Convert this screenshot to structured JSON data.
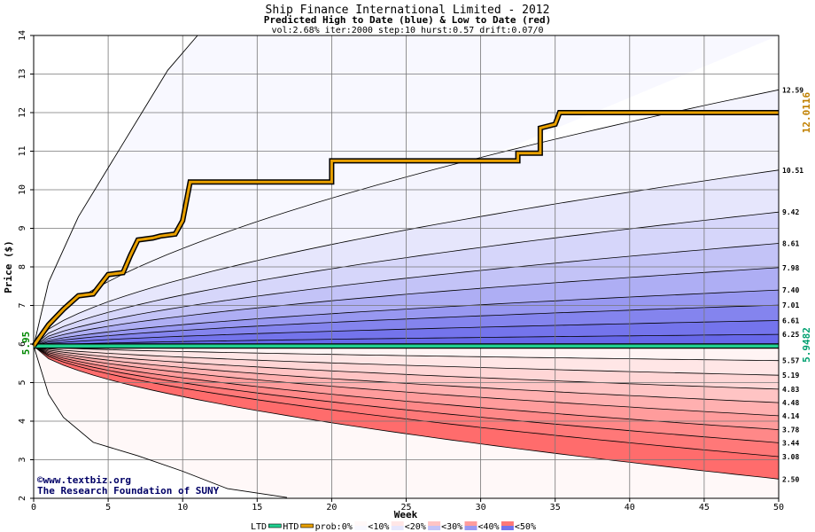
{
  "chart_data": {
    "type": "area",
    "title": "Ship Finance International Limited - 2012",
    "subtitle": "Predicted High to Date (blue) &  Low to Date (red)",
    "params": "vol:2.68% iter:2000 step:10 hurst:0.57 drift:0.07/0",
    "xlabel": "Week",
    "ylabel": "Price ($)",
    "xlim": [
      0,
      50
    ],
    "ylim": [
      2,
      14
    ],
    "x_ticks": [
      "0",
      "5",
      "10",
      "15",
      "20",
      "25",
      "30",
      "35",
      "40",
      "45",
      "50"
    ],
    "y_ticks": [
      "2",
      "3",
      "4",
      "5",
      "6",
      "7",
      "8",
      "9",
      "10",
      "11",
      "12",
      "13",
      "14"
    ],
    "grid": true,
    "start_price": 5.95,
    "start_price_label": "5.95",
    "htd_value": 12.0116,
    "htd_label": "12.0116",
    "ltd_value": 5.9482,
    "ltd_label": "5.9482",
    "high_bands": [
      {
        "end": 12.59,
        "label": "12.59"
      },
      {
        "end": 10.51,
        "label": "10.51"
      },
      {
        "end": 9.42,
        "label": "9.42"
      },
      {
        "end": 8.61,
        "label": "8.61"
      },
      {
        "end": 7.98,
        "label": "7.98"
      },
      {
        "end": 7.4,
        "label": "7.40"
      },
      {
        "end": 7.01,
        "label": "7.01"
      },
      {
        "end": 6.61,
        "label": "6.61"
      },
      {
        "end": 6.25,
        "label": "6.25"
      }
    ],
    "low_bands": [
      {
        "end": 5.57,
        "label": "5.57"
      },
      {
        "end": 5.19,
        "label": "5.19"
      },
      {
        "end": 4.83,
        "label": "4.83"
      },
      {
        "end": 4.48,
        "label": "4.48"
      },
      {
        "end": 4.14,
        "label": "4.14"
      },
      {
        "end": 3.78,
        "label": "3.78"
      },
      {
        "end": 3.44,
        "label": "3.44"
      },
      {
        "end": 3.08,
        "label": "3.08"
      },
      {
        "end": 2.5,
        "label": "2.50"
      }
    ],
    "outer_high_curve": [
      [
        0,
        5.95
      ],
      [
        1,
        7.6
      ],
      [
        3,
        9.3
      ],
      [
        6,
        11.2
      ],
      [
        9,
        13.1
      ],
      [
        11,
        14.0
      ]
    ],
    "outer_low_curve": [
      [
        0,
        5.95
      ],
      [
        1,
        4.7
      ],
      [
        2,
        4.1
      ],
      [
        4,
        3.45
      ],
      [
        7,
        3.1
      ],
      [
        10,
        2.7
      ],
      [
        13,
        2.25
      ],
      [
        17,
        2.02
      ]
    ],
    "htd_steps": [
      [
        0,
        5.95
      ],
      [
        1,
        6.5
      ],
      [
        2,
        6.9
      ],
      [
        3,
        7.25
      ],
      [
        4,
        7.3
      ],
      [
        4.5,
        7.55
      ],
      [
        5,
        7.8
      ],
      [
        6,
        7.85
      ],
      [
        6.5,
        8.3
      ],
      [
        7,
        8.7
      ],
      [
        8,
        8.75
      ],
      [
        8.5,
        8.8
      ],
      [
        9.5,
        8.85
      ],
      [
        10,
        9.2
      ],
      [
        10.5,
        10.2
      ],
      [
        20,
        10.2
      ],
      [
        20,
        10.75
      ],
      [
        32.5,
        10.75
      ],
      [
        32.5,
        10.95
      ],
      [
        34,
        10.95
      ],
      [
        34,
        11.6
      ],
      [
        35,
        11.7
      ],
      [
        35.3,
        12.0
      ],
      [
        50,
        12.0
      ]
    ],
    "legend": {
      "items": [
        "LTD",
        "HTD",
        "prob:0%",
        "<10%",
        "<20%",
        "<30%",
        "<40%",
        "<50%"
      ]
    },
    "colors": {
      "htd": "#e8a000",
      "ltd": "#20d090",
      "high_bands": [
        "#f4f4fe",
        "#e6e6fc",
        "#d6d6fa",
        "#c3c3f7",
        "#aeaef4",
        "#9898f1",
        "#8484ee",
        "#7474ec",
        "#6868ea"
      ],
      "low_bands": [
        "#fff4f4",
        "#ffe6e6",
        "#ffd6d6",
        "#ffc4c4",
        "#ffb0b0",
        "#ff9c9c",
        "#ff8888",
        "#ff7878",
        "#ff6c6c"
      ]
    }
  },
  "credits": {
    "line1": "©www.textbiz.org",
    "line2": "The Research Foundation of SUNY"
  }
}
